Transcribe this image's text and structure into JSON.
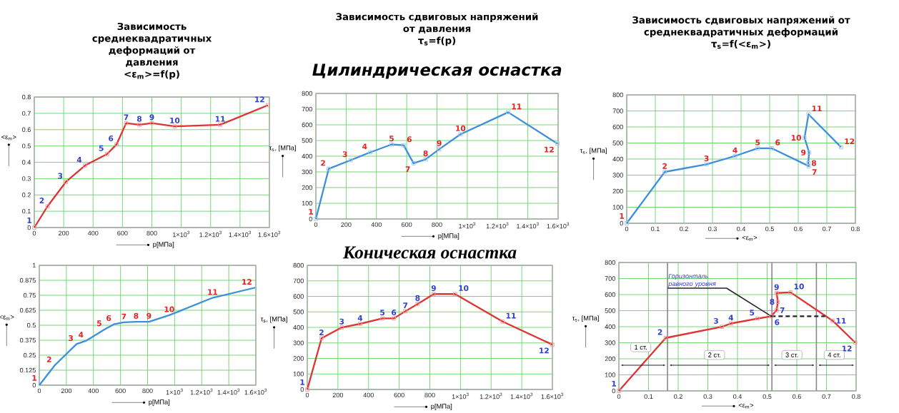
{
  "chart_data": [
    {
      "type": "line",
      "title": "Зависимость среднеквадратичных деформаций от давления",
      "subtitle": "<ε$_{m}$>=f(p)",
      "xlabel": "p[МПа]",
      "ylabel": "<ε$_{m}$>",
      "x": [
        0,
        90,
        215,
        345,
        495,
        560,
        625,
        715,
        800,
        955,
        1265,
        1590
      ],
      "series": [
        {
          "color": "#dd3333",
          "values": [
            0,
            0.13,
            0.28,
            0.38,
            0.45,
            0.51,
            0.64,
            0.63,
            0.64,
            0.62,
            0.63,
            0.75
          ]
        }
      ],
      "annotations": [
        {
          "text": "1",
          "x": 0,
          "y": 0
        },
        {
          "text": "2",
          "x": 90,
          "y": 0.13
        },
        {
          "text": "3",
          "x": 215,
          "y": 0.28
        },
        {
          "text": "4",
          "x": 345,
          "y": 0.38
        },
        {
          "text": "5",
          "x": 495,
          "y": 0.45
        },
        {
          "text": "6",
          "x": 560,
          "y": 0.51
        },
        {
          "text": "7",
          "x": 625,
          "y": 0.64
        },
        {
          "text": "8",
          "x": 715,
          "y": 0.63
        },
        {
          "text": "9",
          "x": 800,
          "y": 0.64
        },
        {
          "text": "10",
          "x": 955,
          "y": 0.62
        },
        {
          "text": "11",
          "x": 1265,
          "y": 0.63
        },
        {
          "text": "12",
          "x": 1590,
          "y": 0.75
        }
      ],
      "xlim": [
        0,
        1600
      ],
      "ylim": [
        0,
        0.8
      ],
      "xticks": [
        0,
        200,
        400,
        600,
        800,
        {
          "value": 1000,
          "label": "1×10$^{3}$"
        },
        {
          "value": 1200,
          "label": "1.2×10$^{3}$"
        },
        {
          "value": 1400,
          "label": "1.4×10$^{3}$"
        },
        {
          "value": 1600,
          "label": "1.6×10$^{3}$"
        }
      ],
      "yticks": [
        0,
        0.1,
        0.2,
        0.3,
        0.4,
        0.5,
        0.6,
        0.7,
        0.8
      ],
      "grid": true,
      "marker": "square"
    },
    {
      "type": "line",
      "title": "Зависимость сдвиговых напряжений от давления",
      "subtitle": "τ$_{s}$=f(p)",
      "xlabel": "p[МПа]",
      "ylabel": "τ$_{s}$, [МПа]",
      "x": [
        0,
        85,
        230,
        360,
        500,
        580,
        645,
        725,
        815,
        955,
        1270,
        1595
      ],
      "series": [
        {
          "color": "#3d8fdb",
          "values": [
            0,
            320,
            375,
            425,
            475,
            470,
            355,
            380,
            445,
            540,
            680,
            480
          ]
        }
      ],
      "annotations": [
        "Цилиндрическая оснастка",
        {
          "text": "1",
          "x": 0,
          "y": 0
        },
        {
          "text": "2",
          "x": 85,
          "y": 320
        },
        {
          "text": "3",
          "x": 230,
          "y": 375
        },
        {
          "text": "4",
          "x": 360,
          "y": 425
        },
        {
          "text": "5",
          "x": 500,
          "y": 475
        },
        {
          "text": "6",
          "x": 580,
          "y": 470
        },
        {
          "text": "7",
          "x": 645,
          "y": 355
        },
        {
          "text": "8",
          "x": 725,
          "y": 380
        },
        {
          "text": "9",
          "x": 815,
          "y": 445
        },
        {
          "text": "10",
          "x": 955,
          "y": 540
        },
        {
          "text": "11",
          "x": 1270,
          "y": 680
        },
        {
          "text": "12",
          "x": 1595,
          "y": 480
        }
      ],
      "xlim": [
        0,
        1600
      ],
      "ylim": [
        0,
        800
      ],
      "xticks": [
        0,
        200,
        400,
        600,
        800,
        {
          "value": 1000,
          "label": "1×10$^{3}$"
        },
        {
          "value": 1200,
          "label": "1.2×10$^{3}$"
        },
        {
          "value": 1400,
          "label": "1.4×10$^{3}$"
        },
        {
          "value": 1600,
          "label": "1.6×10$^{3}$"
        }
      ],
      "yticks": [
        0,
        100,
        200,
        300,
        400,
        500,
        600,
        700,
        800
      ],
      "grid": true,
      "marker": "square"
    },
    {
      "type": "line",
      "title": "Зависимость сдвиговых напряжений от среднеквадратичных деформаций",
      "subtitle": "τ$_{s}$=f(<ε$_{m}$>)",
      "xlabel": "<ε$_{m}$>",
      "ylabel": "τ$_{s}$, [МПа]",
      "x": [
        0,
        0.133,
        0.279,
        0.379,
        0.458,
        0.508,
        0.637,
        0.635,
        0.638,
        0.622,
        0.636,
        0.75
      ],
      "series": [
        {
          "color": "#3d8fdb",
          "values": [
            0,
            320,
            367,
            419,
            467,
            467,
            356,
            375,
            441,
            533,
            679,
            474
          ]
        }
      ],
      "annotations": [
        {
          "text": "1",
          "x": 0,
          "y": 0
        },
        {
          "text": "2",
          "x": 0.133,
          "y": 320
        },
        {
          "text": "3",
          "x": 0.279,
          "y": 367
        },
        {
          "text": "4",
          "x": 0.379,
          "y": 419
        },
        {
          "text": "5",
          "x": 0.458,
          "y": 467
        },
        {
          "text": "6",
          "x": 0.508,
          "y": 467
        },
        {
          "text": "7",
          "x": 0.637,
          "y": 356
        },
        {
          "text": "8",
          "x": 0.635,
          "y": 375
        },
        {
          "text": "9",
          "x": 0.638,
          "y": 441
        },
        {
          "text": "10",
          "x": 0.622,
          "y": 533
        },
        {
          "text": "11",
          "x": 0.636,
          "y": 679
        },
        {
          "text": "12",
          "x": 0.75,
          "y": 474
        }
      ],
      "xlim": [
        0,
        0.8
      ],
      "ylim": [
        0,
        800
      ],
      "xticks": [
        0,
        0.1,
        0.2,
        0.3,
        0.4,
        0.5,
        0.6,
        0.7,
        0.8
      ],
      "yticks": [
        0,
        100,
        200,
        300,
        400,
        500,
        600,
        700,
        800
      ],
      "grid": true,
      "marker": "square"
    },
    {
      "type": "line",
      "xlabel": "p[МПа]",
      "ylabel": "<ε$_{m}$>",
      "x": [
        0,
        115,
        275,
        350,
        485,
        555,
        625,
        715,
        810,
        960,
        1280,
        1595
      ],
      "series": [
        {
          "color": "#3d8fdb",
          "values": [
            0,
            0.167,
            0.343,
            0.373,
            0.467,
            0.51,
            0.525,
            0.529,
            0.529,
            0.584,
            0.729,
            0.814
          ]
        }
      ],
      "annotations": [
        {
          "text": "1",
          "x": 0,
          "y": 0
        },
        {
          "text": "2",
          "x": 115,
          "y": 0.167
        },
        {
          "text": "3",
          "x": 275,
          "y": 0.343
        },
        {
          "text": "4",
          "x": 350,
          "y": 0.373
        },
        {
          "text": "5",
          "x": 485,
          "y": 0.467
        },
        {
          "text": "6",
          "x": 555,
          "y": 0.51
        },
        {
          "text": "7",
          "x": 625,
          "y": 0.525
        },
        {
          "text": "8",
          "x": 715,
          "y": 0.529
        },
        {
          "text": "9",
          "x": 810,
          "y": 0.529
        },
        {
          "text": "10",
          "x": 960,
          "y": 0.584
        },
        {
          "text": "11",
          "x": 1280,
          "y": 0.729
        },
        {
          "text": "12",
          "x": 1595,
          "y": 0.814
        }
      ],
      "xlim": [
        0,
        1600
      ],
      "ylim": [
        0,
        1
      ],
      "xticks": [
        0,
        200,
        400,
        600,
        800,
        {
          "value": 1000,
          "label": "1×10$^{3}$"
        },
        {
          "value": 1200,
          "label": "1.2×10$^{3}$"
        },
        {
          "value": 1400,
          "label": "1.4×10$^{3}$"
        },
        {
          "value": 1600,
          "label": "1.6×10$^{3}$"
        }
      ],
      "yticks": [
        0,
        0.125,
        0.25,
        0.375,
        0.5,
        0.625,
        0.75,
        0.875,
        1
      ],
      "grid": true
    },
    {
      "type": "line",
      "xlabel": "p[МПа]",
      "ylabel": "τ$_{s}$, [МПа]",
      "x": [
        0,
        93,
        225,
        345,
        490,
        565,
        640,
        720,
        825,
        965,
        1275,
        1600
      ],
      "series": [
        {
          "color": "#dd3333",
          "values": [
            0,
            330,
            400,
            423,
            458,
            458,
            504,
            551,
            615,
            615,
            438,
            289
          ]
        }
      ],
      "annotations": [
        "Коническая оснастка",
        {
          "text": "1",
          "x": 0,
          "y": 0
        },
        {
          "text": "2",
          "x": 93,
          "y": 330
        },
        {
          "text": "3",
          "x": 225,
          "y": 400
        },
        {
          "text": "4",
          "x": 345,
          "y": 423
        },
        {
          "text": "5",
          "x": 490,
          "y": 458
        },
        {
          "text": "6",
          "x": 565,
          "y": 458
        },
        {
          "text": "7",
          "x": 640,
          "y": 504
        },
        {
          "text": "8",
          "x": 720,
          "y": 551
        },
        {
          "text": "9",
          "x": 825,
          "y": 615
        },
        {
          "text": "10",
          "x": 965,
          "y": 615
        },
        {
          "text": "11",
          "x": 1275,
          "y": 438
        },
        {
          "text": "12",
          "x": 1600,
          "y": 289
        }
      ],
      "xlim": [
        0,
        1600
      ],
      "ylim": [
        0,
        800
      ],
      "xticks": [
        0,
        200,
        400,
        600,
        800,
        {
          "value": 1000,
          "label": "1×10$^{3}$"
        },
        {
          "value": 1200,
          "label": "1.2×10$^{3}$"
        },
        {
          "value": 1400,
          "label": "1.4×10$^{3}$"
        },
        {
          "value": 1600,
          "label": "1.6×10$^{3}$"
        }
      ],
      "yticks": [
        0,
        100,
        200,
        300,
        400,
        500,
        600,
        700,
        800
      ],
      "grid": true,
      "marker": "square"
    },
    {
      "type": "line",
      "xlabel": "<ε$_{m}$>",
      "ylabel": "τ$_{s}$, [МПа]",
      "x": [
        0,
        0.158,
        0.347,
        0.378,
        0.468,
        0.514,
        0.532,
        0.536,
        0.532,
        0.579,
        0.721,
        0.797
      ],
      "series": [
        {
          "color": "#dd3333",
          "values": [
            0,
            330,
            399,
            420,
            451,
            465,
            503,
            555,
            610,
            614,
            437,
            301
          ]
        },
        {
          "type": "line",
          "x": [
            0.514,
            0.695
          ],
          "values": [
            465,
            465
          ],
          "color": "#222222",
          "line_style": "dashed",
          "marker": "none"
        }
      ],
      "annotations": [
        {
          "text": "1",
          "x": 0,
          "y": 0
        },
        {
          "text": "2",
          "x": 0.158,
          "y": 330
        },
        {
          "text": "3",
          "x": 0.347,
          "y": 399
        },
        {
          "text": "4",
          "x": 0.378,
          "y": 420
        },
        {
          "text": "5",
          "x": 0.468,
          "y": 451
        },
        {
          "text": "6",
          "x": 0.514,
          "y": 465
        },
        {
          "text": "7",
          "x": 0.532,
          "y": 503
        },
        {
          "text": "8",
          "x": 0.536,
          "y": 555
        },
        {
          "text": "9",
          "x": 0.532,
          "y": 610
        },
        {
          "text": "10",
          "x": 0.579,
          "y": 614
        },
        {
          "text": "11",
          "x": 0.721,
          "y": 437
        },
        {
          "text": "12",
          "x": 0.797,
          "y": 301
        },
        {
          "text": "Горизонталь равного уровня",
          "x": 0.514,
          "y": 465
        },
        "1 ст.",
        "2 ст.",
        "3 ст.",
        "4 ст."
      ],
      "ref_lines": [
        {
          "axis": "x",
          "value": 0.164,
          "color": "#888888"
        },
        {
          "axis": "x",
          "value": 0.516,
          "color": "#888888"
        },
        {
          "axis": "x",
          "value": 0.666,
          "color": "#888888"
        }
      ],
      "xlim": [
        0,
        0.8
      ],
      "ylim": [
        0,
        800
      ],
      "xticks": [
        0,
        0.1,
        0.2,
        0.3,
        0.4,
        0.5,
        0.6,
        0.7,
        0.8
      ],
      "yticks": [
        0,
        100,
        200,
        300,
        400,
        500,
        600,
        700,
        800
      ],
      "grid": true,
      "marker": "square"
    }
  ]
}
